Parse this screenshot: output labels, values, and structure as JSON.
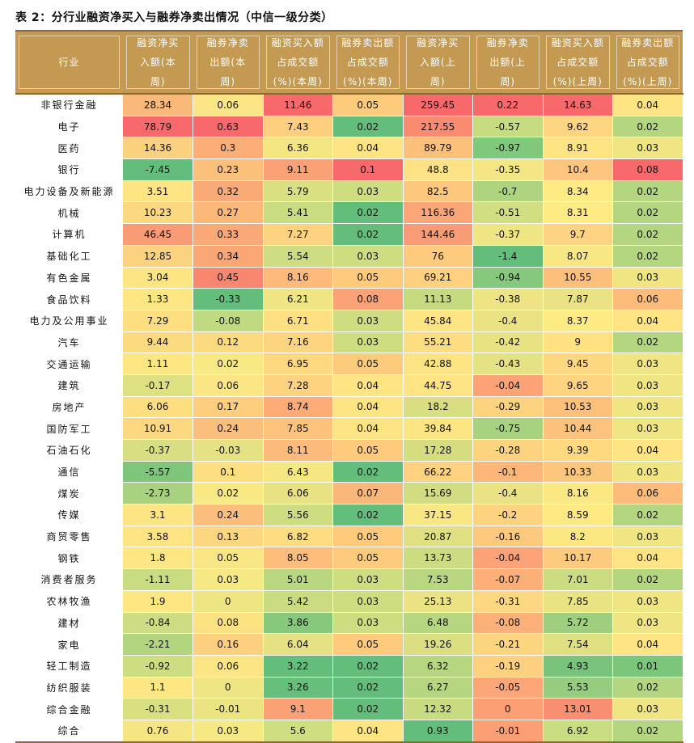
{
  "title": "表 2：分行业融资净买入与融券净卖出情况（中信一级分类）",
  "header": {
    "industry": "行业",
    "cols": [
      "融资净买入额(本周)",
      "融券净卖出额(本周)",
      "融资买入额占成交额(%)(本周)",
      "融券卖出额占成交额(%)(本周)",
      "融资净买入额(上周)",
      "融券净卖出额(上周)",
      "融资买入额占成交额(%)(上周)",
      "融券卖出额占成交额(%)(上周)"
    ]
  },
  "rows": [
    {
      "industry": "非银行金融",
      "values": [
        "28.34",
        "0.06",
        "11.46",
        "0.05",
        "259.45",
        "0.22",
        "14.63",
        "0.04"
      ],
      "colors": [
        "#fbb979",
        "#fbe584",
        "#f8696b",
        "#fecb7d",
        "#f8696b",
        "#f8696b",
        "#f8696b",
        "#fee482"
      ]
    },
    {
      "industry": "电子",
      "values": [
        "78.79",
        "0.63",
        "7.43",
        "0.02",
        "217.55",
        "-0.57",
        "9.62",
        "0.02"
      ],
      "colors": [
        "#f8696b",
        "#f8696b",
        "#fecf7f",
        "#63be7b",
        "#f98b71",
        "#c7db81",
        "#fed581",
        "#b5d681"
      ]
    },
    {
      "industry": "医药",
      "values": [
        "14.36",
        "0.3",
        "6.36",
        "0.04",
        "89.79",
        "-0.97",
        "8.91",
        "0.03"
      ],
      "colors": [
        "#fbd07f",
        "#fbae77",
        "#f4e683",
        "#fee482",
        "#fcc07b",
        "#80c87c",
        "#fee482",
        "#f0e583"
      ]
    },
    {
      "industry": "银行",
      "values": [
        "-7.45",
        "0.23",
        "9.11",
        "0.1",
        "48.8",
        "-0.35",
        "10.4",
        "0.08"
      ],
      "colors": [
        "#63be7b",
        "#fcc07b",
        "#fba176",
        "#f8696b",
        "#fee283",
        "#f3e683",
        "#fdc57d",
        "#f8696b"
      ]
    },
    {
      "industry": "电力设备及新能源",
      "values": [
        "3.51",
        "0.32",
        "5.79",
        "0.03",
        "82.5",
        "-0.7",
        "8.34",
        "0.02"
      ],
      "colors": [
        "#fee483",
        "#faaa76",
        "#d9e081",
        "#cfdd81",
        "#fdc77d",
        "#afd480",
        "#ffeb84",
        "#b5d681"
      ]
    },
    {
      "industry": "机械",
      "values": [
        "10.23",
        "0.27",
        "5.41",
        "0.02",
        "116.36",
        "-0.51",
        "8.31",
        "0.02"
      ],
      "colors": [
        "#fcd980",
        "#fbb879",
        "#c9dc81",
        "#63be7b",
        "#fba677",
        "#d1de82",
        "#ffeb84",
        "#b5d681"
      ]
    },
    {
      "industry": "计算机",
      "values": [
        "46.45",
        "0.33",
        "7.27",
        "0.02",
        "144.46",
        "-0.37",
        "9.7",
        "0.02"
      ],
      "colors": [
        "#f99b74",
        "#faa876",
        "#fed380",
        "#63be7b",
        "#f99b74",
        "#f0e583",
        "#fed381",
        "#b5d681"
      ]
    },
    {
      "industry": "基础化工",
      "values": [
        "12.85",
        "0.34",
        "5.54",
        "0.03",
        "76",
        "-1.4",
        "8.07",
        "0.02"
      ],
      "colors": [
        "#fbd27f",
        "#faa675",
        "#cedd82",
        "#cfdd81",
        "#fecb7e",
        "#63be7b",
        "#f7e883",
        "#b5d681"
      ]
    },
    {
      "industry": "有色金属",
      "values": [
        "3.04",
        "0.45",
        "8.16",
        "0.05",
        "69.21",
        "-0.94",
        "10.55",
        "0.03"
      ],
      "colors": [
        "#fee583",
        "#f9866f",
        "#fdba7a",
        "#fecb7d",
        "#fed07f",
        "#86c97d",
        "#fdc07c",
        "#f0e583"
      ]
    },
    {
      "industry": "食品饮料",
      "values": [
        "1.33",
        "-0.33",
        "6.21",
        "0.08",
        "11.13",
        "-0.38",
        "7.87",
        "0.06"
      ],
      "colors": [
        "#fee683",
        "#63be7b",
        "#efe583",
        "#fba276",
        "#c6da80",
        "#eee483",
        "#ebe383",
        "#fdbc79"
      ]
    },
    {
      "industry": "电力及公用事业",
      "values": [
        "7.29",
        "-0.08",
        "6.71",
        "0.03",
        "45.84",
        "-0.4",
        "8.37",
        "0.04"
      ],
      "colors": [
        "#fdde81",
        "#bfda80",
        "#fedf82",
        "#cfdd81",
        "#fee483",
        "#ebe383",
        "#ffeb84",
        "#fee482"
      ]
    },
    {
      "industry": "汽车",
      "values": [
        "9.44",
        "0.12",
        "7.16",
        "0.03",
        "55.21",
        "-0.42",
        "9",
        "0.02"
      ],
      "colors": [
        "#fcda80",
        "#fcda80",
        "#fed480",
        "#cfdd81",
        "#fedd82",
        "#e8e283",
        "#fee282",
        "#b5d681"
      ]
    },
    {
      "industry": "交通运输",
      "values": [
        "1.11",
        "0.02",
        "6.95",
        "0.05",
        "42.88",
        "-0.43",
        "9.45",
        "0.03"
      ],
      "colors": [
        "#fee683",
        "#f8e983",
        "#fed980",
        "#fecb7d",
        "#fee483",
        "#e5e283",
        "#fed881",
        "#f0e583"
      ]
    },
    {
      "industry": "建筑",
      "values": [
        "-0.17",
        "0.06",
        "7.28",
        "0.04",
        "44.75",
        "-0.04",
        "9.65",
        "0.03"
      ],
      "colors": [
        "#dde182",
        "#fbe584",
        "#fed380",
        "#fee482",
        "#fee483",
        "#fda377",
        "#fed481",
        "#f0e583"
      ]
    },
    {
      "industry": "房地产",
      "values": [
        "6.06",
        "0.17",
        "8.74",
        "0.04",
        "18.2",
        "-0.29",
        "10.53",
        "0.03"
      ],
      "colors": [
        "#fdde81",
        "#fcce7e",
        "#fdac77",
        "#fee482",
        "#d8de81",
        "#fcd480",
        "#fdc17c",
        "#f0e583"
      ]
    },
    {
      "industry": "国防军工",
      "values": [
        "10.91",
        "0.24",
        "7.85",
        "0.04",
        "39.84",
        "-0.75",
        "10.44",
        "0.03"
      ],
      "colors": [
        "#fcd880",
        "#fcbe7b",
        "#fdc37c",
        "#fee482",
        "#fde582",
        "#a7d280",
        "#fdc37c",
        "#f0e583"
      ]
    },
    {
      "industry": "石油石化",
      "values": [
        "-0.37",
        "-0.03",
        "8.11",
        "0.05",
        "17.28",
        "-0.28",
        "9.39",
        "0.04"
      ],
      "colors": [
        "#d7df82",
        "#e4e283",
        "#fdbb7b",
        "#fecb7d",
        "#d6dd81",
        "#fdd380",
        "#fed980",
        "#fee482"
      ]
    },
    {
      "industry": "通信",
      "values": [
        "-5.57",
        "0.1",
        "6.43",
        "0.02",
        "66.22",
        "-0.1",
        "10.33",
        "0.03"
      ],
      "colors": [
        "#7ec67c",
        "#fdde81",
        "#f6e783",
        "#63be7b",
        "#fed280",
        "#fdb67a",
        "#fdc67d",
        "#f0e583"
      ]
    },
    {
      "industry": "煤炭",
      "values": [
        "-2.73",
        "0.02",
        "6.06",
        "0.07",
        "15.69",
        "-0.4",
        "8.16",
        "0.06"
      ],
      "colors": [
        "#a9d280",
        "#f8e983",
        "#e8e283",
        "#fbb679",
        "#d2dc81",
        "#ebe383",
        "#fbe883",
        "#fdbc79"
      ]
    },
    {
      "industry": "传媒",
      "values": [
        "3.1",
        "0.24",
        "5.56",
        "0.02",
        "37.15",
        "-0.2",
        "8.59",
        "0.02"
      ],
      "colors": [
        "#fee583",
        "#fcbe7b",
        "#cedd82",
        "#63be7b",
        "#f8e783",
        "#fdd380",
        "#fee983",
        "#b5d681"
      ]
    },
    {
      "industry": "商贸零售",
      "values": [
        "3.58",
        "0.13",
        "6.82",
        "0.05",
        "20.87",
        "-0.16",
        "8.2",
        "0.03"
      ],
      "colors": [
        "#fee483",
        "#fcd77f",
        "#fedc81",
        "#fecb7d",
        "#dfe082",
        "#fdc97e",
        "#fbe883",
        "#f0e583"
      ]
    },
    {
      "industry": "钢铁",
      "values": [
        "1.8",
        "0.05",
        "8.05",
        "0.05",
        "13.73",
        "-0.04",
        "10.17",
        "0.04"
      ],
      "colors": [
        "#fee683",
        "#fae783",
        "#fdbd7b",
        "#fecb7d",
        "#cddc81",
        "#fda377",
        "#fdca7e",
        "#fee482"
      ]
    },
    {
      "industry": "消费者服务",
      "values": [
        "-1.11",
        "0.03",
        "5.01",
        "0.03",
        "7.53",
        "-0.07",
        "7.01",
        "0.02"
      ],
      "colors": [
        "#c9dc81",
        "#f6e883",
        "#b8d780",
        "#cfdd81",
        "#b9d780",
        "#fdaf78",
        "#ccdc81",
        "#b5d681"
      ]
    },
    {
      "industry": "农林牧渔",
      "values": [
        "1.9",
        "0",
        "5.42",
        "0.03",
        "25.13",
        "-0.31",
        "7.85",
        "0.03"
      ],
      "colors": [
        "#fee683",
        "#eee583",
        "#cadc82",
        "#cfdd81",
        "#ebe383",
        "#fdd781",
        "#eae383",
        "#f0e583"
      ]
    },
    {
      "industry": "建材",
      "values": [
        "-0.84",
        "0.08",
        "3.86",
        "0.03",
        "6.48",
        "-0.08",
        "5.72",
        "0.03"
      ],
      "colors": [
        "#cfdd82",
        "#fde282",
        "#86c97d",
        "#cfdd81",
        "#b7d680",
        "#fdb179",
        "#9ecf7e",
        "#f0e583"
      ]
    },
    {
      "industry": "家电",
      "values": [
        "-2.21",
        "0.16",
        "6.04",
        "0.05",
        "19.26",
        "-0.21",
        "7.54",
        "0.04"
      ],
      "colors": [
        "#b4d580",
        "#fcd07f",
        "#e6e283",
        "#fecb7d",
        "#dbdf82",
        "#fdd580",
        "#dfe082",
        "#fee482"
      ]
    },
    {
      "industry": "轻工制造",
      "values": [
        "-0.92",
        "0.06",
        "3.22",
        "0.02",
        "6.32",
        "-0.19",
        "4.93",
        "0.01"
      ],
      "colors": [
        "#cedd82",
        "#fbe584",
        "#63be7b",
        "#63be7b",
        "#b6d680",
        "#fdd180",
        "#78c47c",
        "#7cc67c"
      ]
    },
    {
      "industry": "纺织服装",
      "values": [
        "1.1",
        "0",
        "3.26",
        "0.02",
        "6.27",
        "-0.05",
        "5.53",
        "0.02"
      ],
      "colors": [
        "#fee683",
        "#eee583",
        "#66bf7b",
        "#63be7b",
        "#b6d680",
        "#fda677",
        "#96cc7e",
        "#b5d681"
      ]
    },
    {
      "industry": "综合金融",
      "values": [
        "-0.31",
        "-0.01",
        "9.1",
        "0.02",
        "12.32",
        "0",
        "13.01",
        "0.03"
      ],
      "colors": [
        "#d9e082",
        "#ece483",
        "#fba176",
        "#63be7b",
        "#c9db80",
        "#fd9f75",
        "#f98f71",
        "#f0e583"
      ]
    },
    {
      "industry": "综合",
      "values": [
        "0.76",
        "0.03",
        "5.6",
        "0.04",
        "0.93",
        "-0.01",
        "6.92",
        "0.02"
      ],
      "colors": [
        "#f5e683",
        "#f6e883",
        "#d0de82",
        "#fee482",
        "#63be7b",
        "#fd9f75",
        "#c9dc81",
        "#b5d681"
      ]
    }
  ]
}
